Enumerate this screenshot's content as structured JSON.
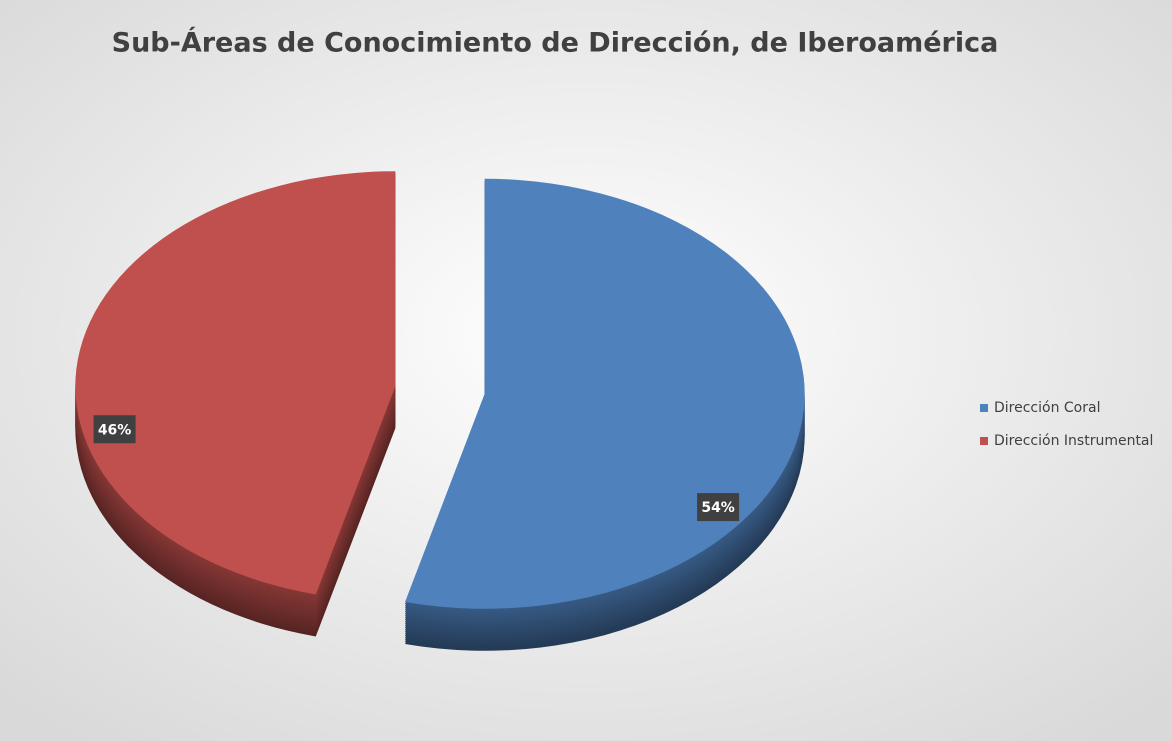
{
  "chart_data": {
    "type": "pie",
    "title": "Sub-Áreas de Conocimiento de Dirección, de Iberoamérica",
    "categories": [
      "Dirección Coral",
      "Dirección Instrumental"
    ],
    "values": [
      54,
      46
    ],
    "value_labels": [
      "54%",
      "46%"
    ],
    "colors": [
      "#4f81bd",
      "#c0504d"
    ],
    "legend": "right"
  }
}
